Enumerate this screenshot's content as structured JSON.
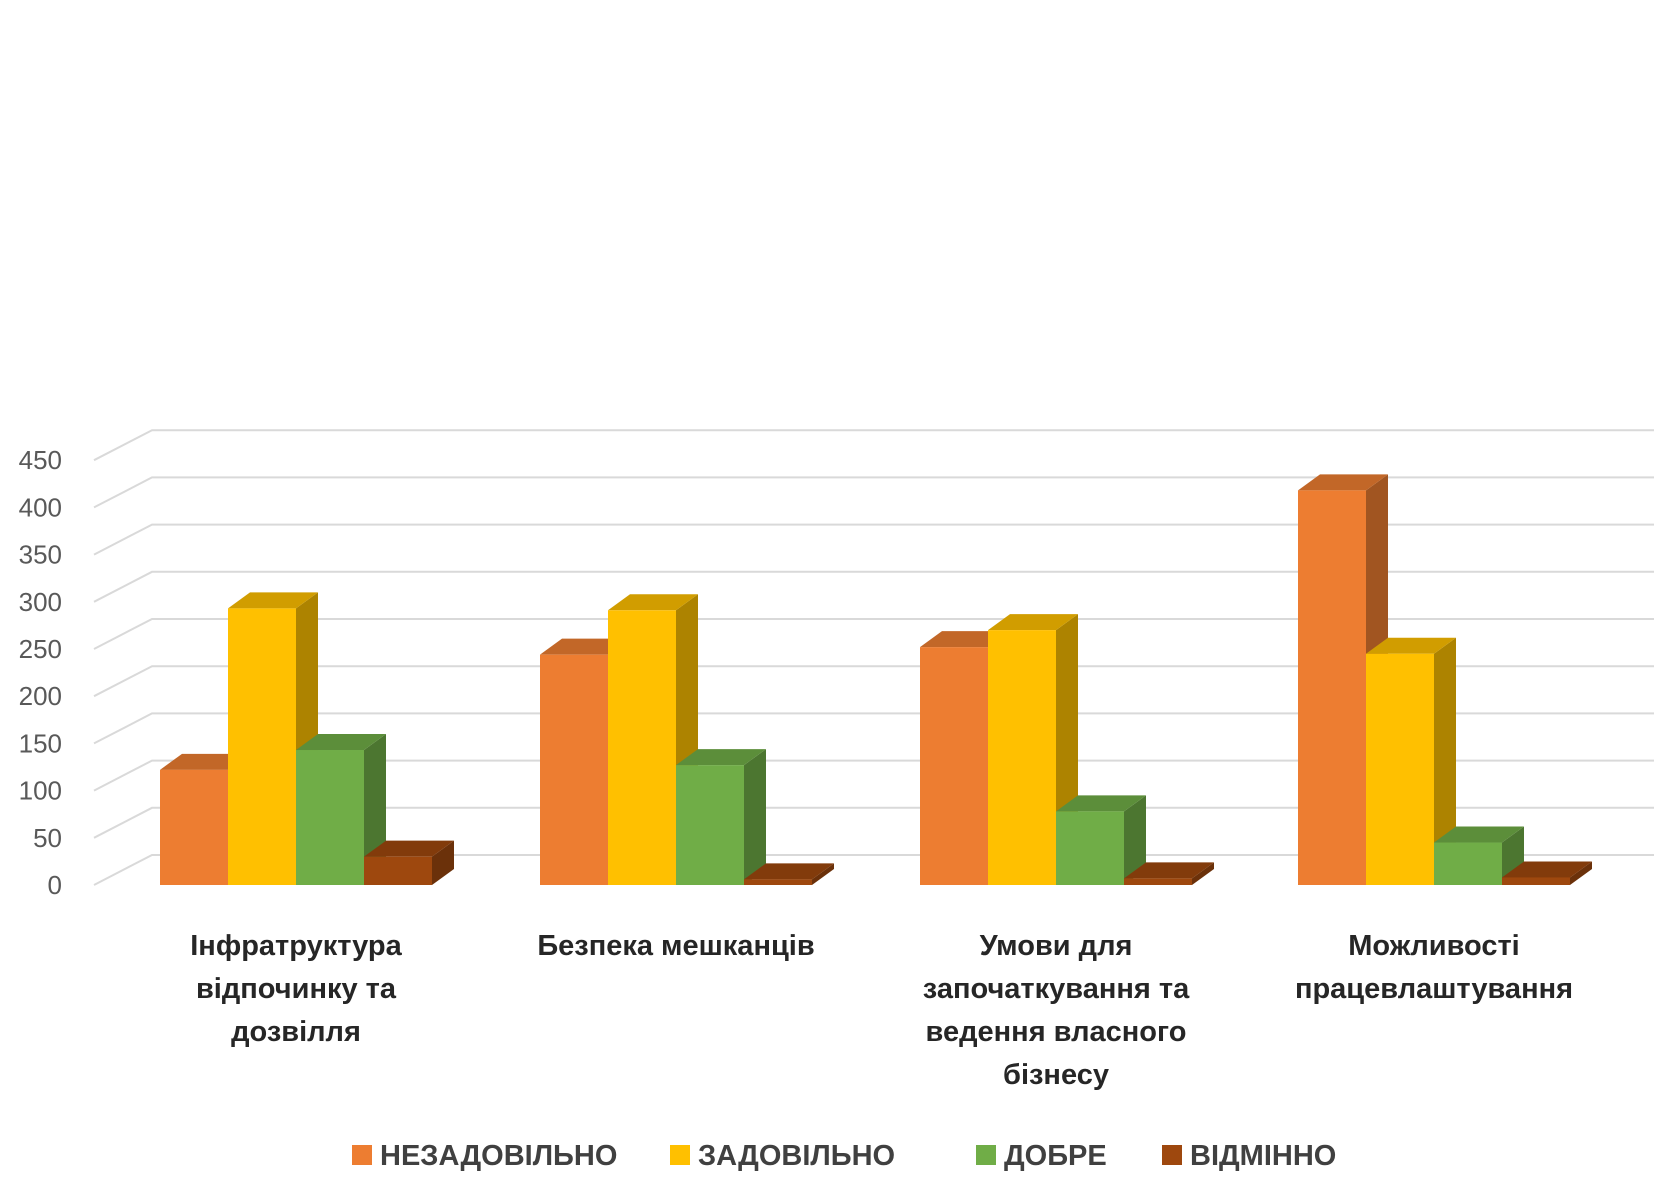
{
  "chart_data": {
    "type": "bar",
    "title": "",
    "xlabel": "",
    "ylabel": "",
    "ylim": [
      0,
      450
    ],
    "yticks": [
      0,
      50,
      100,
      150,
      200,
      250,
      300,
      350,
      400,
      450
    ],
    "grid": true,
    "legend_position": "bottom",
    "three_d": true,
    "categories": [
      [
        "Інфратруктура",
        "відпочинку та",
        "дозвілля"
      ],
      [
        "Безпека мешканців"
      ],
      [
        "Умови для",
        "започаткування та",
        "ведення власного",
        "бізнесу"
      ],
      [
        "Можливості",
        "працевлаштування"
      ]
    ],
    "series": [
      {
        "name": "НЕЗАДОВІЛЬНО",
        "color": "#ED7D31",
        "values": [
          122,
          244,
          252,
          418
        ]
      },
      {
        "name": "ЗАДОВІЛЬНО",
        "color": "#FFC000",
        "values": [
          293,
          291,
          270,
          245
        ]
      },
      {
        "name": "ДОБРЕ",
        "color": "#70AD47",
        "values": [
          143,
          127,
          78,
          45
        ]
      },
      {
        "name": "ВІДМІННО",
        "color": "#9E480E",
        "values": [
          30,
          6,
          7,
          8
        ]
      }
    ]
  }
}
